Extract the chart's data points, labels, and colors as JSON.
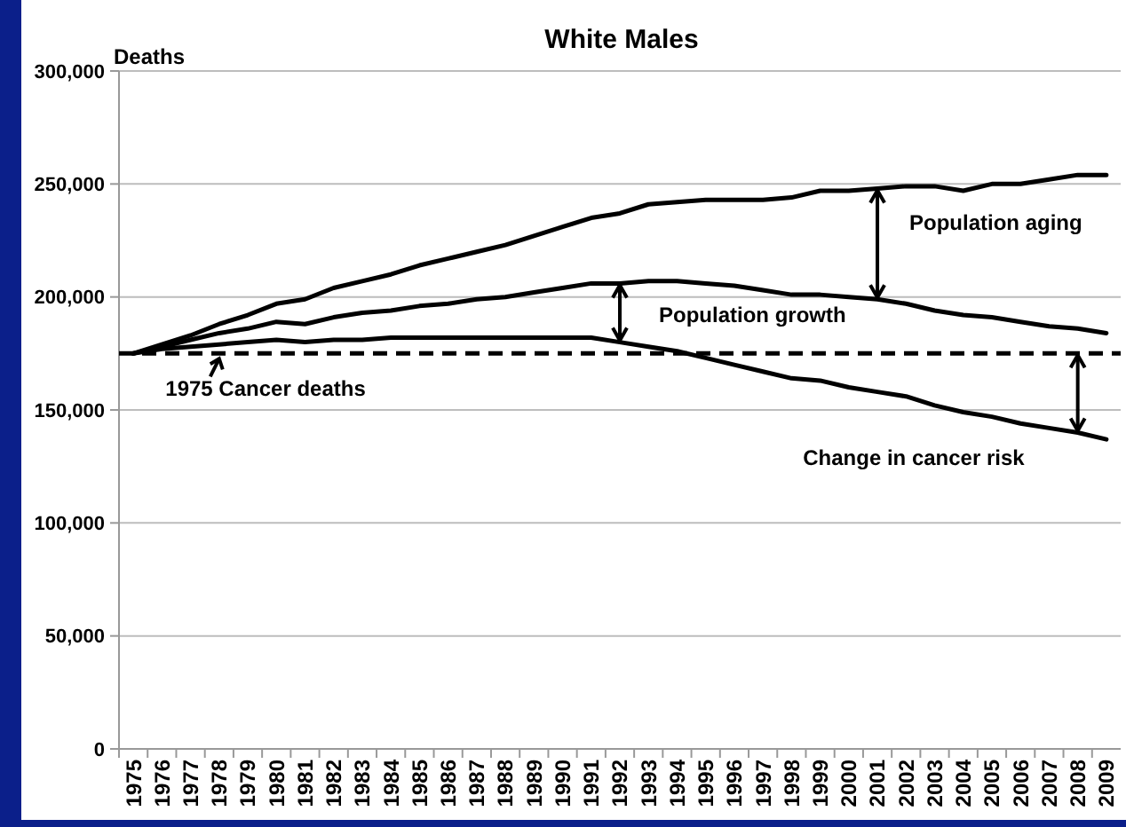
{
  "chart_data": {
    "type": "line",
    "title": "White Males",
    "ylabel": "Deaths",
    "categories": [
      "1975",
      "1976",
      "1977",
      "1978",
      "1979",
      "1980",
      "1981",
      "1982",
      "1983",
      "1984",
      "1985",
      "1986",
      "1987",
      "1988",
      "1989",
      "1990",
      "1991",
      "1992",
      "1993",
      "1994",
      "1995",
      "1996",
      "1997",
      "1998",
      "1999",
      "2000",
      "2001",
      "2002",
      "2003",
      "2004",
      "2005",
      "2006",
      "2007",
      "2008",
      "2009"
    ],
    "series": [
      {
        "color": "#000000",
        "values": [
          175000,
          179000,
          183000,
          188000,
          192000,
          197000,
          199000,
          204000,
          207000,
          210000,
          214000,
          217000,
          220000,
          223000,
          227000,
          231000,
          235000,
          237000,
          241000,
          242000,
          243000,
          243000,
          243000,
          244000,
          247000,
          247000,
          248000,
          249000,
          249000,
          247000,
          250000,
          250000,
          252000,
          254000,
          254000
        ]
      },
      {
        "color": "#000000",
        "values": [
          175000,
          178000,
          181000,
          184000,
          186000,
          189000,
          188000,
          191000,
          193000,
          194000,
          196000,
          197000,
          199000,
          200000,
          202000,
          204000,
          206000,
          206000,
          207000,
          207000,
          206000,
          205000,
          203000,
          201000,
          201000,
          200000,
          199000,
          197000,
          194000,
          192000,
          191000,
          189000,
          187000,
          186000,
          184000
        ]
      },
      {
        "color": "#000000",
        "values": [
          175000,
          177000,
          178000,
          179000,
          180000,
          181000,
          180000,
          181000,
          181000,
          182000,
          182000,
          182000,
          182000,
          182000,
          182000,
          182000,
          182000,
          180000,
          178000,
          176000,
          173000,
          170000,
          167000,
          164000,
          163000,
          160000,
          158000,
          156000,
          152000,
          149000,
          147000,
          144000,
          142000,
          140000,
          137000
        ]
      }
    ],
    "ylim": [
      0,
      300000
    ],
    "yticks": [
      {
        "value": 0,
        "label": "0"
      },
      {
        "value": 50000,
        "label": "50,000"
      },
      {
        "value": 100000,
        "label": "100,000"
      },
      {
        "value": 150000,
        "label": "150,000"
      },
      {
        "value": 200000,
        "label": "200,000"
      },
      {
        "value": 250000,
        "label": "250,000"
      },
      {
        "value": 300000,
        "label": "300,000"
      }
    ],
    "grid": "y",
    "marker": "none",
    "line_style": "solid",
    "ref_lines": [
      {
        "axis": "y",
        "value": 175000,
        "label": "1975 Cancer deaths",
        "color": "#000000",
        "line_style": "dashed"
      }
    ],
    "annotations": [
      "Population aging",
      "Population growth",
      "Change in cancer risk"
    ]
  }
}
